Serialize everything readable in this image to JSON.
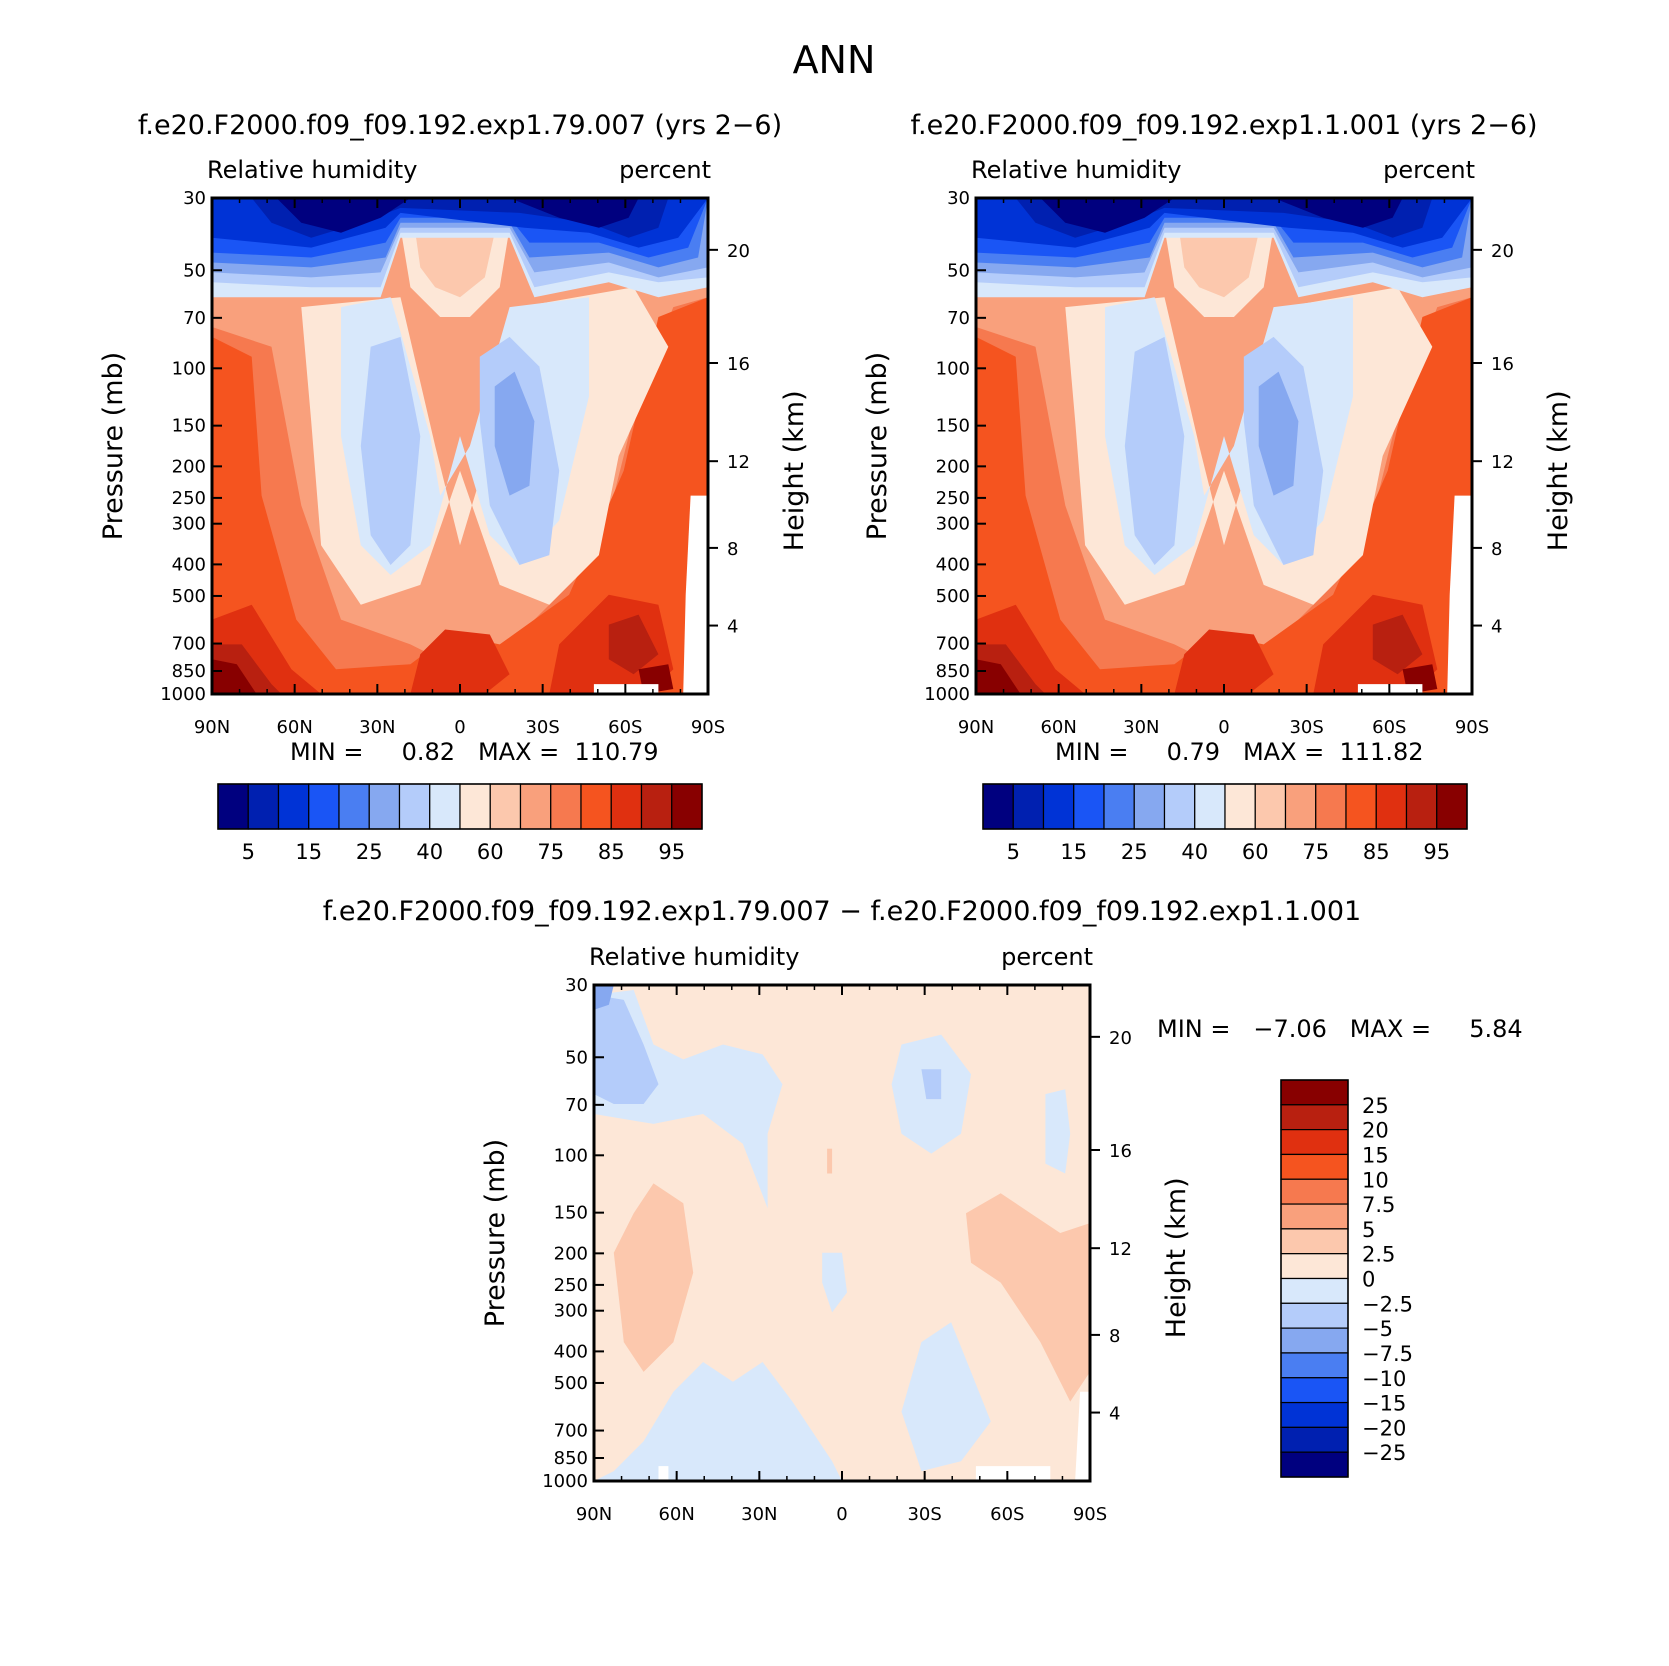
{
  "title": "ANN",
  "panels": [
    {
      "id": "case1",
      "case_title": "f.e20.F2000.f09_f09.192.exp1.79.007 (yrs 2−6)",
      "variable": "Relative humidity",
      "units": "percent",
      "ylabel_left": "Pressure (mb)",
      "ylabel_right": "Height (km)",
      "stats": "MIN =     0.82   MAX =  110.79",
      "labelbar_labels": [
        "5",
        "15",
        "25",
        "40",
        "60",
        "75",
        "85",
        "95"
      ]
    },
    {
      "id": "case2",
      "case_title": "f.e20.F2000.f09_f09.192.exp1.1.001 (yrs 2−6)",
      "variable": "Relative humidity",
      "units": "percent",
      "ylabel_left": "Pressure (mb)",
      "ylabel_right": "Height (km)",
      "stats": "MIN =     0.79   MAX =  111.82",
      "labelbar_labels": [
        "5",
        "15",
        "25",
        "40",
        "60",
        "75",
        "85",
        "95"
      ]
    },
    {
      "id": "diff",
      "case_title": "f.e20.F2000.f09_f09.192.exp1.79.007 − f.e20.F2000.f09_f09.192.exp1.1.001",
      "variable": "Relative humidity",
      "units": "percent",
      "ylabel_left": "Pressure (mb)",
      "ylabel_right": "Height (km)",
      "stats": "MIN =   −7.06   MAX =     5.84",
      "labelbar_labels": [
        "25",
        "20",
        "15",
        "10",
        "7.5",
        "5",
        "2.5",
        "0",
        "−2.5",
        "−5",
        "−7.5",
        "−10",
        "−15",
        "−20",
        "−25"
      ]
    }
  ],
  "chart_data": [
    {
      "type": "heatmap",
      "subtype": "filled-contour latitude-pressure cross-section",
      "title": "f.e20.F2000.f09_f09.192.exp1.79.007 (yrs 2−6)",
      "xlabel": "",
      "ylabel": "Pressure (mb)",
      "ylabel_right": "Height (km)",
      "x_ticks": [
        "90N",
        "60N",
        "30N",
        "0",
        "30S",
        "60S",
        "90S"
      ],
      "y_ticks": [
        30,
        50,
        70,
        100,
        150,
        200,
        250,
        300,
        400,
        500,
        700,
        850,
        1000
      ],
      "y_right_ticks": [
        20,
        16,
        12,
        8,
        4
      ],
      "contour_levels": [
        5,
        10,
        15,
        20,
        25,
        30,
        40,
        50,
        60,
        65,
        75,
        80,
        85,
        90,
        95
      ],
      "min": 0.82,
      "max": 110.79
    },
    {
      "type": "heatmap",
      "subtype": "filled-contour latitude-pressure cross-section",
      "title": "f.e20.F2000.f09_f09.192.exp1.1.001 (yrs 2−6)",
      "xlabel": "",
      "ylabel": "Pressure (mb)",
      "ylabel_right": "Height (km)",
      "x_ticks": [
        "90N",
        "60N",
        "30N",
        "0",
        "30S",
        "60S",
        "90S"
      ],
      "y_ticks": [
        30,
        50,
        70,
        100,
        150,
        200,
        250,
        300,
        400,
        500,
        700,
        850,
        1000
      ],
      "y_right_ticks": [
        20,
        16,
        12,
        8,
        4
      ],
      "contour_levels": [
        5,
        10,
        15,
        20,
        25,
        30,
        40,
        50,
        60,
        65,
        75,
        80,
        85,
        90,
        95
      ],
      "min": 0.79,
      "max": 111.82
    },
    {
      "type": "heatmap",
      "subtype": "filled-contour difference",
      "title": "f.e20.F2000.f09_f09.192.exp1.79.007 − f.e20.F2000.f09_f09.192.exp1.1.001",
      "xlabel": "",
      "ylabel": "Pressure (mb)",
      "ylabel_right": "Height (km)",
      "x_ticks": [
        "90N",
        "60N",
        "30N",
        "0",
        "30S",
        "60S",
        "90S"
      ],
      "y_ticks": [
        30,
        50,
        70,
        100,
        150,
        200,
        250,
        300,
        400,
        500,
        700,
        850,
        1000
      ],
      "y_right_ticks": [
        20,
        16,
        12,
        8,
        4
      ],
      "contour_levels": [
        -25,
        -20,
        -15,
        -10,
        -7.5,
        -5,
        -2.5,
        0,
        2.5,
        5,
        7.5,
        10,
        15,
        20,
        25
      ],
      "min": -7.06,
      "max": 5.84
    }
  ],
  "colors": {
    "abs_scale": [
      "#00007f",
      "#0020b0",
      "#0033d6",
      "#1a55f5",
      "#4a7ef2",
      "#86a8f0",
      "#b4ccfa",
      "#d8e8fb",
      "#fde7d7",
      "#fcc8ad",
      "#f9a07c",
      "#f6794f",
      "#f5541f",
      "#e03010",
      "#b82010",
      "#880000"
    ],
    "diff_scale": [
      "#00007f",
      "#0020b0",
      "#0033d6",
      "#1a55f5",
      "#4a7ef2",
      "#86a8f0",
      "#b4ccfa",
      "#d8e8fb",
      "#fde7d7",
      "#fcc8ad",
      "#f9a07c",
      "#f6794f",
      "#f5541f",
      "#e03010",
      "#b82010",
      "#880000"
    ]
  }
}
